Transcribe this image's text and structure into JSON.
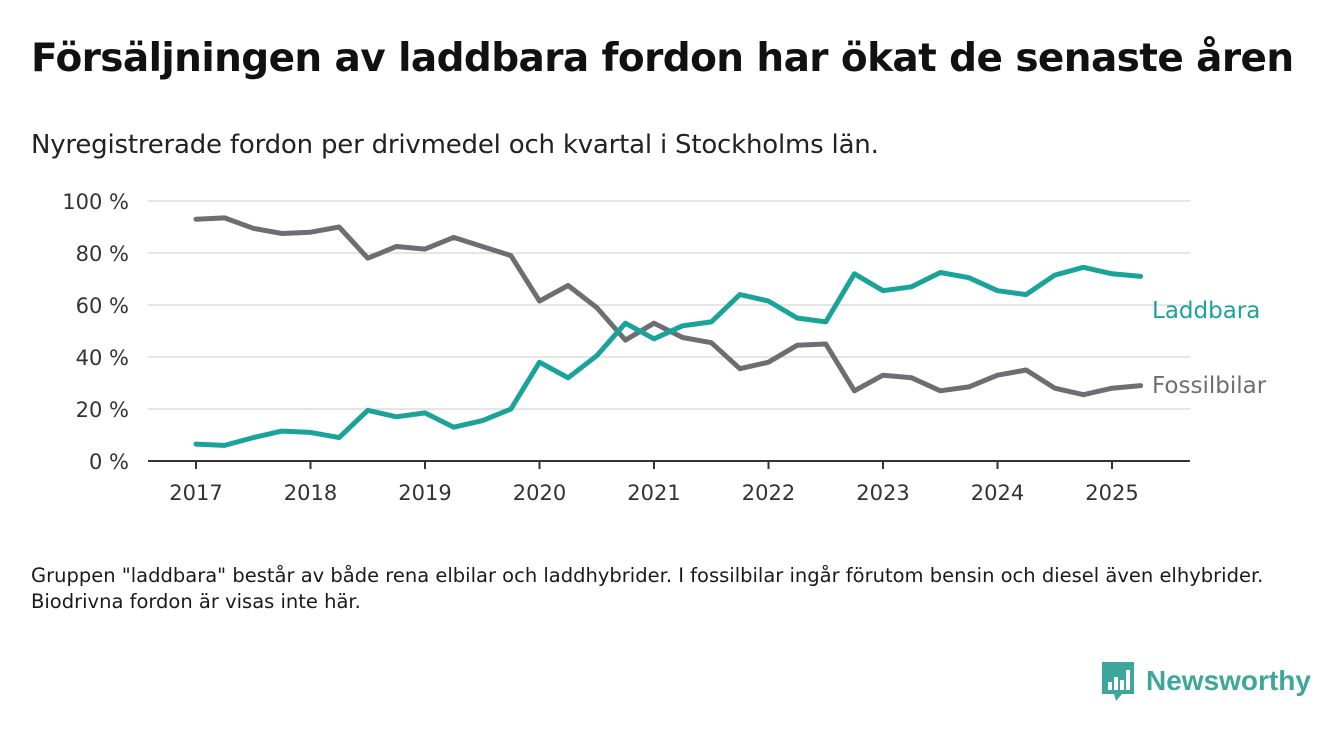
{
  "title": "Försäljningen av laddbara fordon har ökat de senaste åren",
  "subtitle": "Nyregistrerade fordon per drivmedel och kvartal i Stockholms län.",
  "note": "Gruppen \"laddbara\" består av både rena elbilar och laddhybrider. I fossilbilar ingår förutom bensin och diesel även elhybrider. Biodrivna fordon är visas inte här.",
  "brand": {
    "name": "Newsworthy",
    "icon": "newsworthy-logo-icon",
    "color": "#3ca79a"
  },
  "chart_data": {
    "type": "line",
    "xlabel": "",
    "ylabel": "",
    "ylim": [
      0,
      100
    ],
    "y_ticks": [
      0,
      20,
      40,
      60,
      80,
      100
    ],
    "y_tick_labels": [
      "0 %",
      "20 %",
      "40 %",
      "60 %",
      "80 %",
      "100 %"
    ],
    "x_ticks": [
      2017,
      2018,
      2019,
      2020,
      2021,
      2022,
      2023,
      2024,
      2025
    ],
    "x_tick_labels": [
      "2017",
      "2018",
      "2019",
      "2020",
      "2021",
      "2022",
      "2023",
      "2024",
      "2025"
    ],
    "x": [
      "2017 Q1",
      "2017 Q2",
      "2017 Q3",
      "2017 Q4",
      "2018 Q1",
      "2018 Q2",
      "2018 Q3",
      "2018 Q4",
      "2019 Q1",
      "2019 Q2",
      "2019 Q3",
      "2019 Q4",
      "2020 Q1",
      "2020 Q2",
      "2020 Q3",
      "2020 Q4",
      "2021 Q1",
      "2021 Q2",
      "2021 Q3",
      "2021 Q4",
      "2022 Q1",
      "2022 Q2",
      "2022 Q3",
      "2022 Q4",
      "2023 Q1",
      "2023 Q2",
      "2023 Q3",
      "2023 Q4",
      "2024 Q1",
      "2024 Q2",
      "2024 Q3",
      "2024 Q4",
      "2025 Q1",
      "2025 Q2"
    ],
    "grid": true,
    "legend": "inline-right",
    "series": [
      {
        "name": "Laddbara",
        "color": "#1aa39a",
        "values": [
          6.5,
          6,
          9,
          11.5,
          11,
          9,
          19.5,
          17,
          18.5,
          13,
          15.5,
          20,
          38,
          32,
          40.5,
          53,
          47,
          52,
          53.5,
          64,
          61.5,
          55,
          53.5,
          72,
          65.5,
          67,
          72.5,
          70.5,
          65.5,
          64,
          71.5,
          74.5,
          72,
          71
        ]
      },
      {
        "name": "Fossilbilar",
        "color": "#6e6d74",
        "values": [
          93,
          93.5,
          89.5,
          87.5,
          88,
          90,
          78,
          82.5,
          81.5,
          86,
          82.5,
          79,
          61.5,
          67.5,
          59,
          46.5,
          53,
          47.5,
          45.5,
          35.5,
          38,
          44.5,
          45,
          27,
          33,
          32,
          27,
          28.5,
          33,
          35,
          28,
          25.5,
          28,
          29
        ]
      }
    ]
  }
}
